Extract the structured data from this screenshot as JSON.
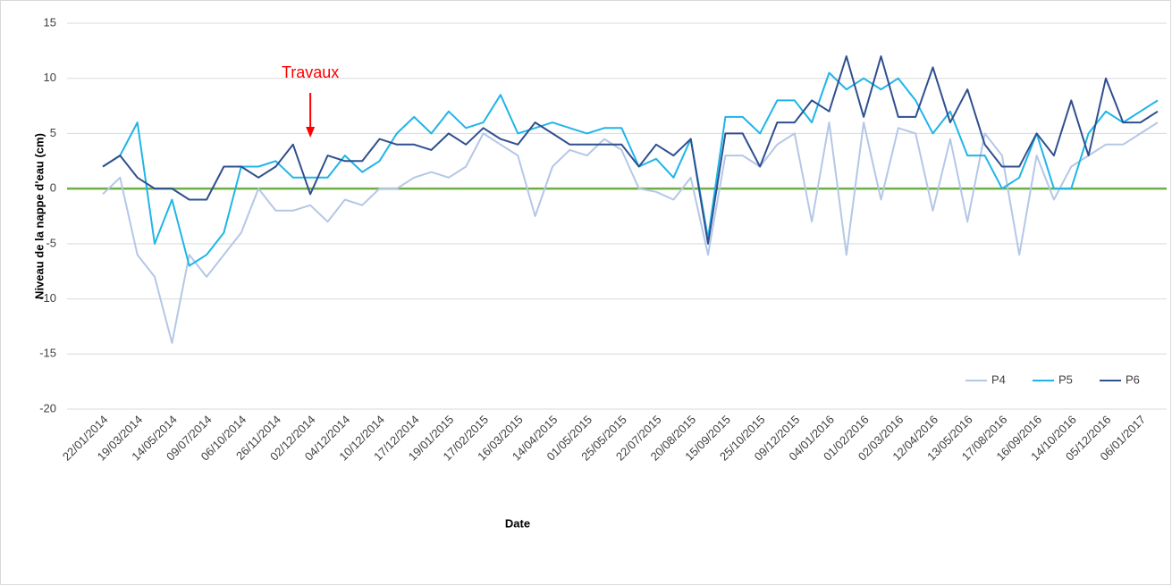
{
  "chart_data": {
    "type": "line",
    "y_label": "Niveau de la nappe d'eau (cm)",
    "x_label": "Date",
    "categories": [
      "22/01/2014",
      null,
      "19/03/2014",
      null,
      "14/05/2014",
      null,
      "09/07/2014",
      null,
      "06/10/2014",
      null,
      "26/11/2014",
      null,
      "02/12/2014",
      null,
      "04/12/2014",
      null,
      "10/12/2014",
      null,
      "17/12/2014",
      null,
      "19/01/2015",
      null,
      "17/02/2015",
      null,
      "16/03/2015",
      null,
      "14/04/2015",
      null,
      "01/05/2015",
      null,
      "25/05/2015",
      null,
      "22/07/2015",
      null,
      "20/08/2015",
      null,
      "15/09/2015",
      null,
      "25/10/2015",
      null,
      "09/12/2015",
      null,
      "04/01/2016",
      null,
      "01/02/2016",
      null,
      "02/03/2016",
      null,
      "12/04/2016",
      null,
      "13/05/2016",
      null,
      "17/08/2016",
      null,
      "16/09/2016",
      null,
      "14/10/2016",
      null,
      "05/12/2016",
      null,
      "06/01/2017",
      null
    ],
    "series": [
      {
        "name": "P4",
        "color": "#b4c7e7",
        "values": [
          -0.5,
          1,
          -6,
          -8,
          -14,
          -6,
          -8,
          -6,
          -4,
          0,
          -2,
          -2,
          -1.5,
          -3,
          -1,
          -1.5,
          0,
          0,
          1,
          1.5,
          1,
          2,
          5,
          4,
          3,
          -2.5,
          2,
          3.5,
          3,
          4.5,
          3.5,
          0,
          -0.3,
          -1,
          1,
          -6,
          3,
          3,
          2,
          4,
          5,
          -3,
          6,
          -6,
          6,
          -1,
          5.5,
          5,
          -2,
          4.5,
          -3,
          5,
          3,
          -6,
          3,
          -1,
          2,
          3,
          4,
          4,
          5,
          6
        ]
      },
      {
        "name": "P5",
        "color": "#1fb5e8",
        "values": [
          2,
          3,
          6,
          -5,
          -1,
          -7,
          -6,
          -4,
          2,
          2,
          2.5,
          1,
          1,
          1,
          3,
          1.5,
          2.5,
          5,
          6.5,
          5,
          7,
          5.5,
          6,
          8.5,
          5,
          5.5,
          6,
          5.5,
          5,
          5.5,
          5.5,
          2,
          2.7,
          1,
          4.5,
          -4.5,
          6.5,
          6.5,
          5,
          8,
          8,
          6,
          10.5,
          9,
          10,
          9,
          10,
          8,
          5,
          7,
          3,
          3,
          0,
          1,
          5,
          0,
          0,
          5,
          7,
          6,
          7,
          8
        ]
      },
      {
        "name": "P6",
        "color": "#2f4f8f",
        "values": [
          2,
          3,
          1,
          0,
          0,
          -1,
          -1,
          2,
          2,
          1,
          2,
          4,
          -0.5,
          3,
          2.5,
          2.5,
          4.5,
          4,
          4,
          3.5,
          5,
          4,
          5.5,
          4.5,
          4,
          6,
          5,
          4,
          4,
          4,
          4,
          2,
          4,
          3,
          4.5,
          -5,
          5,
          5,
          2,
          6,
          6,
          8,
          7,
          12,
          6.5,
          12,
          6.5,
          6.5,
          11,
          6,
          9,
          4,
          2,
          2,
          5,
          3,
          8,
          3,
          10,
          6,
          6,
          7
        ]
      }
    ],
    "ylim": [
      -20,
      15
    ],
    "yticks": [
      -20,
      -15,
      -10,
      -5,
      0,
      5,
      10,
      15
    ],
    "grid": true,
    "reference_line": {
      "value": 0,
      "color": "#70ad47"
    },
    "annotation": {
      "text": "Travaux",
      "at": "02/12/2014",
      "color": "#ff0000"
    },
    "legend": "lower-right"
  }
}
